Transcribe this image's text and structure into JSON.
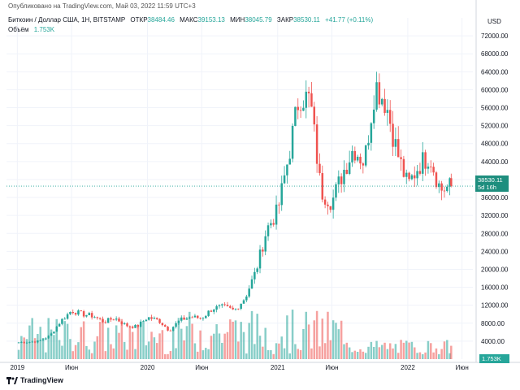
{
  "header": {
    "published": "Опубликовано на TradingView.com, Май 03, 2022 11:59 UTC+3",
    "symbol": "Биткоин / Доллар США, 1Н, BITSTAMP",
    "open_label": "ОТКР",
    "open_value": "38484.46",
    "high_label": "МАКС",
    "high_value": "39153.13",
    "low_label": "МИН",
    "low_value": "38045.79",
    "close_label": "ЗАКР",
    "close_value": "38530.11",
    "change": "+41.77 (+0.11%)",
    "volume_label": "Объём",
    "volume_value": "1.753K"
  },
  "axis": {
    "currency": "USD",
    "price_label": [
      "38530.11",
      "5d 16h"
    ],
    "volume_tag": "1.753K"
  },
  "footer": {
    "brand": "TradingView"
  },
  "colors": {
    "up": "#26a69a",
    "down": "#ef5350",
    "price_line": "#26a69a",
    "axis_text": "#131722",
    "grid": "#f0f3fa"
  },
  "chart_data": {
    "type": "candlestick",
    "title": "Биткоин / Доллар США, 1Н, BITSTAMP",
    "ylabel": "USD",
    "ylim": [
      0,
      76000
    ],
    "y_ticks": [
      4000,
      8000,
      12000,
      16000,
      20000,
      24000,
      28000,
      32000,
      36000,
      40000,
      44000,
      48000,
      52000,
      56000,
      60000,
      64000,
      68000,
      72000
    ],
    "x_ticks": [
      {
        "label": "2019",
        "date": "2019-01"
      },
      {
        "label": "Июн",
        "date": "2019-06"
      },
      {
        "label": "2020",
        "date": "2020-01"
      },
      {
        "label": "Июн",
        "date": "2020-06"
      },
      {
        "label": "2021",
        "date": "2021-01"
      },
      {
        "label": "Июн",
        "date": "2021-06"
      },
      {
        "label": "2022",
        "date": "2022-01"
      },
      {
        "label": "Июн",
        "date": "2022-06"
      }
    ],
    "x_range": [
      "2018-12",
      "2022-07"
    ],
    "current_price": 38530.11,
    "close_path": [
      [
        "2019-01",
        3700
      ],
      [
        "2019-02",
        3800
      ],
      [
        "2019-03",
        4000
      ],
      [
        "2019-04",
        5200
      ],
      [
        "2019-05",
        8500
      ],
      [
        "2019-06",
        10800
      ],
      [
        "2019-07",
        10000
      ],
      [
        "2019-08",
        9600
      ],
      [
        "2019-09",
        8300
      ],
      [
        "2019-10",
        9200
      ],
      [
        "2019-11",
        7500
      ],
      [
        "2019-12",
        7200
      ],
      [
        "2020-01",
        9300
      ],
      [
        "2020-02",
        8700
      ],
      [
        "2020-03",
        6400
      ],
      [
        "2020-04",
        8700
      ],
      [
        "2020-05",
        9400
      ],
      [
        "2020-06",
        9100
      ],
      [
        "2020-07",
        11300
      ],
      [
        "2020-08",
        11600
      ],
      [
        "2020-09",
        10800
      ],
      [
        "2020-10",
        13700
      ],
      [
        "2020-11",
        19600
      ],
      [
        "2020-12",
        29000
      ],
      [
        "2021-01",
        33000
      ],
      [
        "2021-02",
        45000
      ],
      [
        "2021-03",
        58800
      ],
      [
        "2021-04",
        57700
      ],
      [
        "2021-05",
        37300
      ],
      [
        "2021-06",
        35000
      ],
      [
        "2021-07",
        41500
      ],
      [
        "2021-08",
        47100
      ],
      [
        "2021-09",
        43800
      ],
      [
        "2021-10",
        61300
      ],
      [
        "2021-11",
        57000
      ],
      [
        "2021-12",
        46200
      ],
      [
        "2022-01",
        38500
      ],
      [
        "2022-02",
        43200
      ],
      [
        "2022-03",
        45500
      ],
      [
        "2022-04",
        37700
      ],
      [
        "2022-05",
        38530
      ]
    ],
    "volume_note": "volume histogram (green/red), last bar 1.753K"
  }
}
